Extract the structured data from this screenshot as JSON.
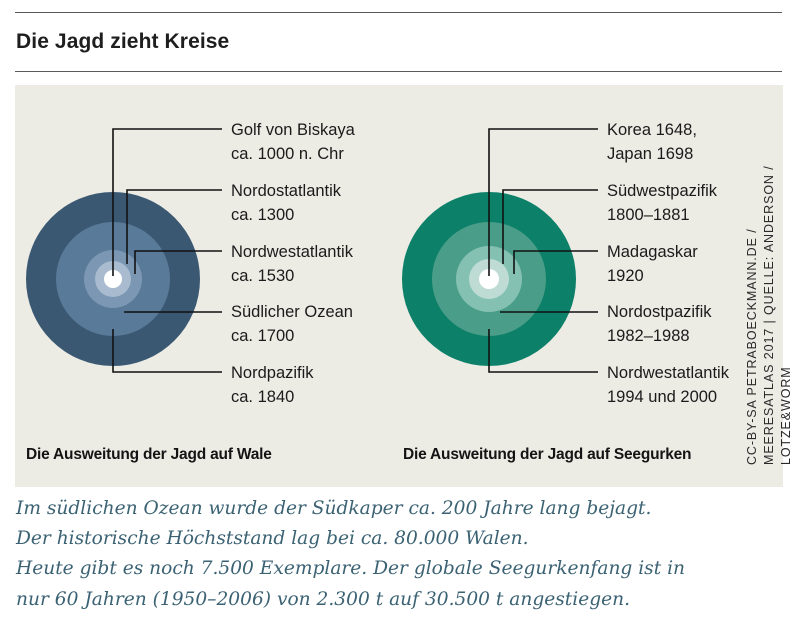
{
  "title": "Die Jagd zieht Kreise",
  "whales": {
    "caption": "Die Ausweitung der Jagd auf Wale",
    "colors": [
      "#3b5873",
      "#597a99",
      "#7b97b3",
      "#a9bccf",
      "#ffffff"
    ],
    "rings": [
      {
        "label": "Golf von Biskaya\nca. 1000 n. Chr"
      },
      {
        "label": "Nordostatlantik\nca. 1300"
      },
      {
        "label": "Nordwestatlantik\nca. 1530"
      },
      {
        "label": "Südlicher Ozean\nca. 1700"
      },
      {
        "label": "Nordpazifik\nca. 1840"
      }
    ]
  },
  "cucumbers": {
    "caption": "Die Ausweitung der Jagd auf Seegurken",
    "colors": [
      "#0c8068",
      "#4a9d88",
      "#85c1b3",
      "#bedcd4",
      "#ffffff"
    ],
    "rings": [
      {
        "label": "Korea 1648,\nJapan 1698"
      },
      {
        "label": "Südwestpazifik\n1800–1881"
      },
      {
        "label": "Madagaskar\n1920"
      },
      {
        "label": "Nordostpazifik\n1982–1988"
      },
      {
        "label": "Nordwestatlantik\n1994 und 2000"
      }
    ]
  },
  "source": "CC-BY-SA PETRABOECKMANN.DE /\nMEERESATLAS 2017 | QUELLE: ANDERSON / LOTZE&WORM",
  "footer": [
    "Im südlichen Ozean wurde der Südkaper ca. 200 Jahre lang bejagt.",
    "Der historische Höchststand lag bei ca. 80.000 Walen.",
    "Heute gibt es noch 7.500 Exemplare. Der globale Seegurkenfang ist in",
    "nur 60 Jahren (1950–2006) von 2.300 t auf 30.500 t angestiegen."
  ]
}
